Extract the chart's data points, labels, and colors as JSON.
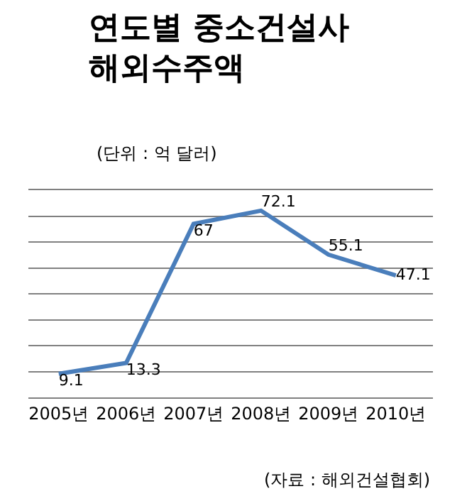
{
  "chart_data": {
    "type": "line",
    "title": "연도별 중소건설사\n해외수주액",
    "subtitle": "(단위 : 억 달러)",
    "categories": [
      "2005년",
      "2006년",
      "2007년",
      "2008년",
      "2009년",
      "2010년"
    ],
    "series": [
      {
        "color": "#4a7ebb",
        "values": [
          9.1,
          13.3,
          67,
          72.1,
          55.1,
          47.1
        ]
      }
    ],
    "ylim": [
      0,
      80
    ],
    "yticks": [
      {
        "value": 0,
        "label": null
      },
      {
        "value": 10,
        "label": null
      },
      {
        "value": 20,
        "label": null
      },
      {
        "value": 30,
        "label": null
      },
      {
        "value": 40,
        "label": null
      },
      {
        "value": 50,
        "label": null
      },
      {
        "value": 60,
        "label": null
      },
      {
        "value": 70,
        "label": null
      },
      {
        "value": 80,
        "label": null
      }
    ],
    "grid": "y",
    "data_labels": true,
    "marker": "none",
    "line_style": "solid",
    "tick_labels": "x",
    "annotations": [
      "(자료 : 해외건설협회)"
    ]
  }
}
